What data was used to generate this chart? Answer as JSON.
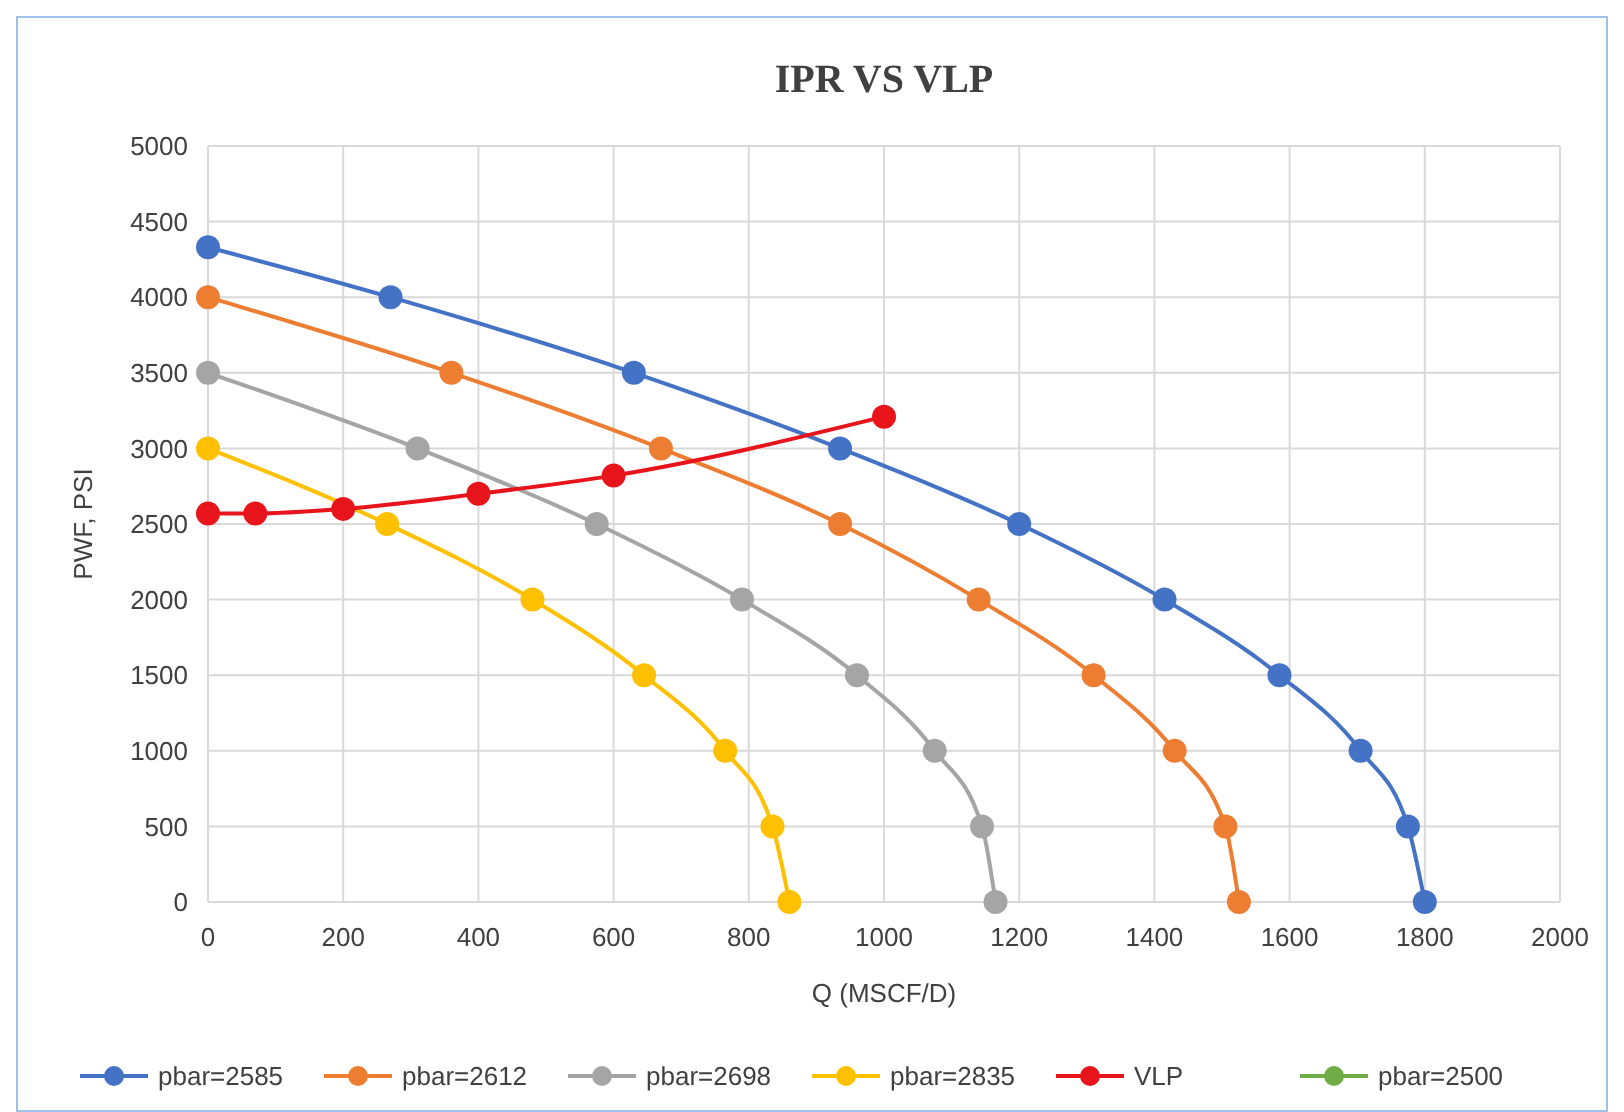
{
  "chart_data": {
    "type": "line",
    "title": "IPR VS VLP",
    "xlabel": "Q (MSCF/D)",
    "ylabel": "PWF, PSI",
    "xlim": [
      0,
      2000
    ],
    "xticks": [
      0,
      200,
      400,
      600,
      800,
      1000,
      1200,
      1400,
      1600,
      1800,
      2000
    ],
    "ylim": [
      0,
      5000
    ],
    "yticks": [
      0,
      500,
      1000,
      1500,
      2000,
      2500,
      3000,
      3500,
      4000,
      4500,
      5000
    ],
    "grid": true,
    "legend": "bottom",
    "marker": "circle",
    "line_style": "solid",
    "series": [
      {
        "name": "pbar=2585",
        "color": "#4472c4",
        "x": [
          0,
          270,
          630,
          935,
          1200,
          1415,
          1585,
          1705,
          1775,
          1800
        ],
        "values": [
          4330,
          4000,
          3500,
          3000,
          2500,
          2000,
          1500,
          1000,
          500,
          0
        ]
      },
      {
        "name": "pbar=2612",
        "color": "#ed7d31",
        "x": [
          0,
          360,
          670,
          935,
          1140,
          1310,
          1430,
          1505,
          1525
        ],
        "values": [
          4000,
          3500,
          3000,
          2500,
          2000,
          1500,
          1000,
          500,
          0
        ]
      },
      {
        "name": "pbar=2698",
        "color": "#a5a5a5",
        "x": [
          0,
          310,
          575,
          790,
          960,
          1075,
          1145,
          1165
        ],
        "values": [
          3500,
          3000,
          2500,
          2000,
          1500,
          1000,
          500,
          0
        ]
      },
      {
        "name": "pbar=2835",
        "color": "#ffc000",
        "x": [
          0,
          265,
          480,
          645,
          765,
          835,
          860
        ],
        "values": [
          3000,
          2500,
          2000,
          1500,
          1000,
          500,
          0
        ]
      },
      {
        "name": "VLP",
        "color": "#e8141c",
        "x": [
          0,
          70,
          200,
          400,
          600,
          1000
        ],
        "values": [
          2570,
          2570,
          2600,
          2700,
          2820,
          3210
        ]
      },
      {
        "name": "pbar=2500",
        "color": "#70ad47"
      }
    ]
  }
}
